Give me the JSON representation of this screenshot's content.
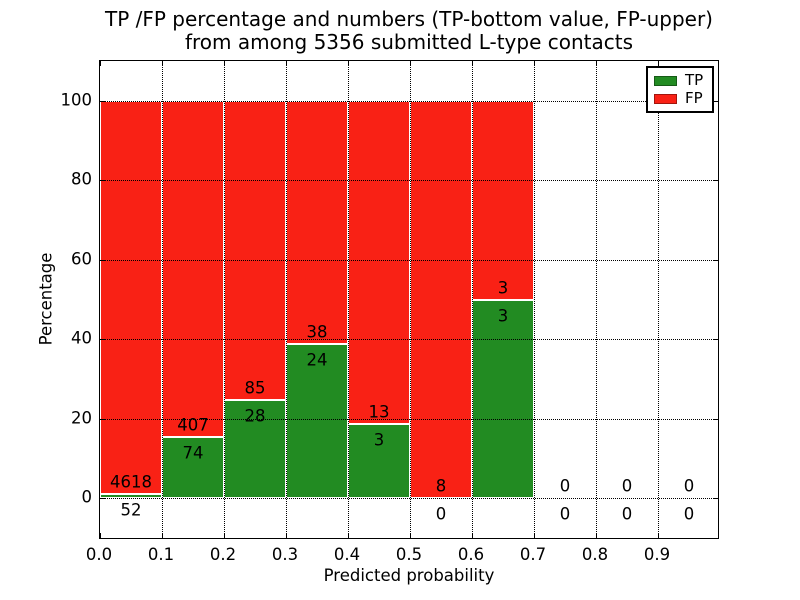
{
  "chart_data": {
    "type": "bar",
    "stacked": true,
    "title_line1": "TP /FP percentage and numbers (TP-bottom value, FP-upper)",
    "title_line2": "from among 5356 submitted L-type contacts",
    "xlabel": "Predicted probability",
    "ylabel": "Percentage",
    "xlim": [
      0,
      1.0
    ],
    "ylim": [
      -10.5,
      110
    ],
    "grid": true,
    "legend_position": "upper right",
    "bin_start": [
      0.0,
      0.1,
      0.2,
      0.3,
      0.4,
      0.5,
      0.6,
      0.7,
      0.8,
      0.9
    ],
    "bin_width": 0.1,
    "xtick_labels": [
      "0.0",
      "0.1",
      "0.2",
      "0.3",
      "0.4",
      "0.5",
      "0.6",
      "0.7",
      "0.8",
      "0.9"
    ],
    "ytick_values": [
      0,
      20,
      40,
      60,
      80,
      100
    ],
    "series": [
      {
        "name": "TP",
        "color": "#228b22",
        "counts": [
          52,
          74,
          28,
          24,
          3,
          0,
          3,
          0,
          0,
          0
        ]
      },
      {
        "name": "FP",
        "color": "#f92115",
        "counts": [
          4618,
          407,
          85,
          38,
          13,
          8,
          3,
          0,
          0,
          0
        ]
      }
    ],
    "tp_percent_by_bin": [
      1.11,
      15.38,
      24.78,
      38.71,
      18.75,
      0.0,
      50.0,
      null,
      null,
      null
    ]
  },
  "colors": {
    "grid": "#000000",
    "text": "#000000",
    "bar_edge": "#ffffff",
    "axes": "#000000",
    "background": "#ffffff"
  }
}
